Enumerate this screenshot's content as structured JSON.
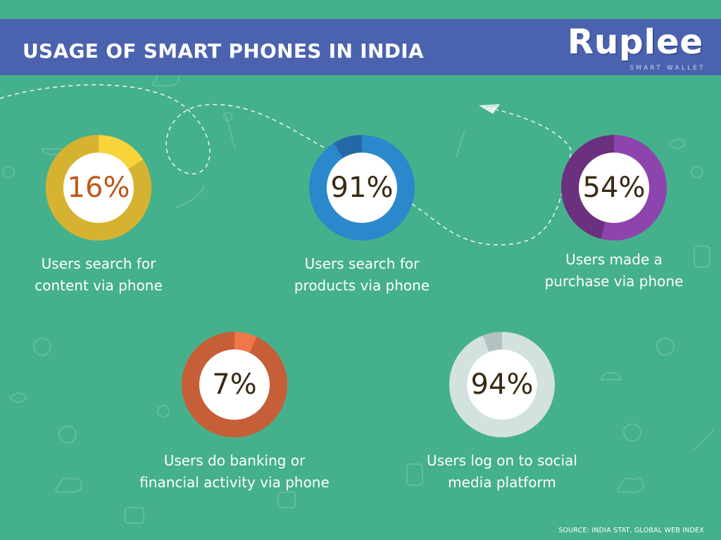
{
  "header": {
    "title": "USAGE OF SMART PHONES IN INDIA",
    "logo_word": "Ruplee",
    "logo_tagline": "SMART WALLET"
  },
  "colors": {
    "background": "#45b08c",
    "header": "#4b63af",
    "track_yellow": "#f9d33a",
    "fill_yellow": "#d5b331",
    "track_blue": "#2b88cc",
    "fill_blue": "#2469a6",
    "track_purple": "#8e44ad",
    "fill_purple": "#6b307e",
    "track_orange": "#ef7748",
    "fill_orange": "#c65e37",
    "track_grey": "#d3e1df",
    "fill_grey": "#b1c2c0"
  },
  "chart_data": {
    "type": "donut",
    "items": [
      {
        "value": 16,
        "display": "16%",
        "label_lines": [
          "Users search for",
          "content via phone"
        ],
        "track": "#f9d33a",
        "fill": "#d5b331",
        "pct_color": "#c0571a"
      },
      {
        "value": 91,
        "display": "91%",
        "label_lines": [
          "Users search for",
          "products via phone"
        ],
        "track": "#2b88cc",
        "fill": "#2469a6",
        "pct_color": "#3a2a14"
      },
      {
        "value": 54,
        "display": "54%",
        "label_lines": [
          "Users made a",
          "purchase via phone"
        ],
        "track": "#8e44ad",
        "fill": "#6b307e",
        "pct_color": "#3a2a14"
      },
      {
        "value": 7,
        "display": "7%",
        "label_lines": [
          "Users do banking or",
          "financial activity via phone"
        ],
        "track": "#ef7748",
        "fill": "#c65e37",
        "pct_color": "#3a2a14"
      },
      {
        "value": 94,
        "display": "94%",
        "label_lines": [
          "Users log on to social",
          "media platform"
        ],
        "track": "#d3e1df",
        "fill": "#b1c2c0",
        "pct_color": "#3a2a14"
      }
    ]
  },
  "footer": {
    "source": "SOURCE: INDIA STAT, GLOBAL WEB INDEX"
  }
}
